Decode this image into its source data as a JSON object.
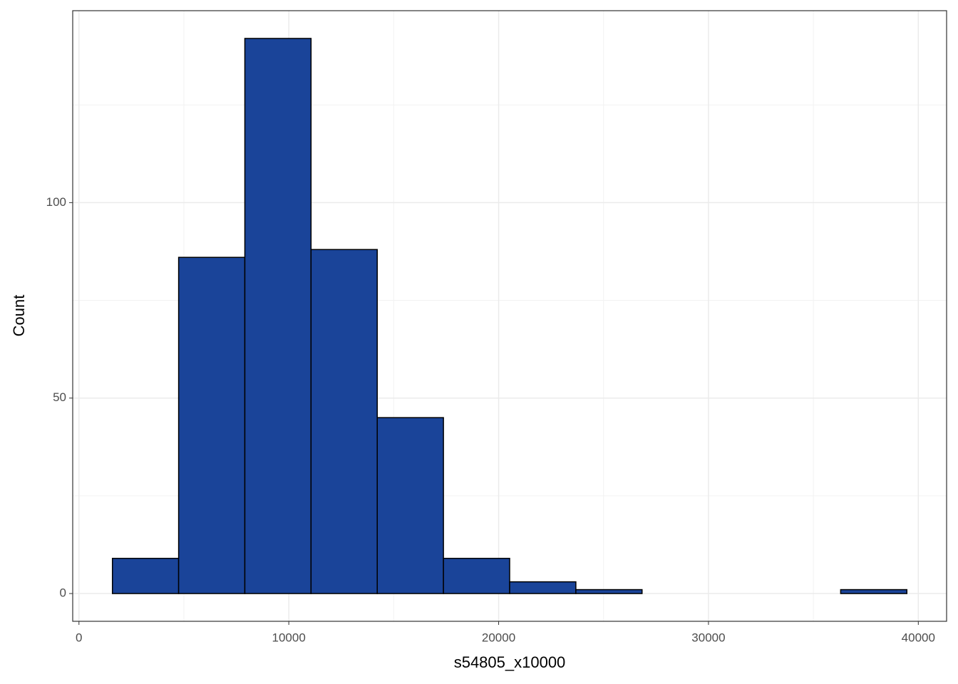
{
  "chart_data": {
    "type": "histogram",
    "x_label": "s54805_x10000",
    "y_label": "Count",
    "bins": [
      1595,
      4750,
      7905,
      11060,
      14215,
      17370,
      20525,
      23680,
      26835,
      29990,
      33145,
      36300,
      39455
    ],
    "counts": [
      9,
      86,
      142,
      88,
      45,
      9,
      3,
      1,
      0,
      0,
      0,
      1
    ],
    "color": "#1a4499",
    "edge_color": "#000000",
    "xlim": [
      -298,
      41348
    ],
    "ylim": [
      -7.1,
      149.1
    ],
    "xticks": [
      0,
      10000,
      20000,
      30000,
      40000
    ],
    "yticks": [
      0,
      50,
      100
    ],
    "minor_xticks": [
      5000,
      15000,
      25000,
      35000
    ],
    "minor_yticks": [
      25,
      75,
      125
    ],
    "grid": true
  }
}
